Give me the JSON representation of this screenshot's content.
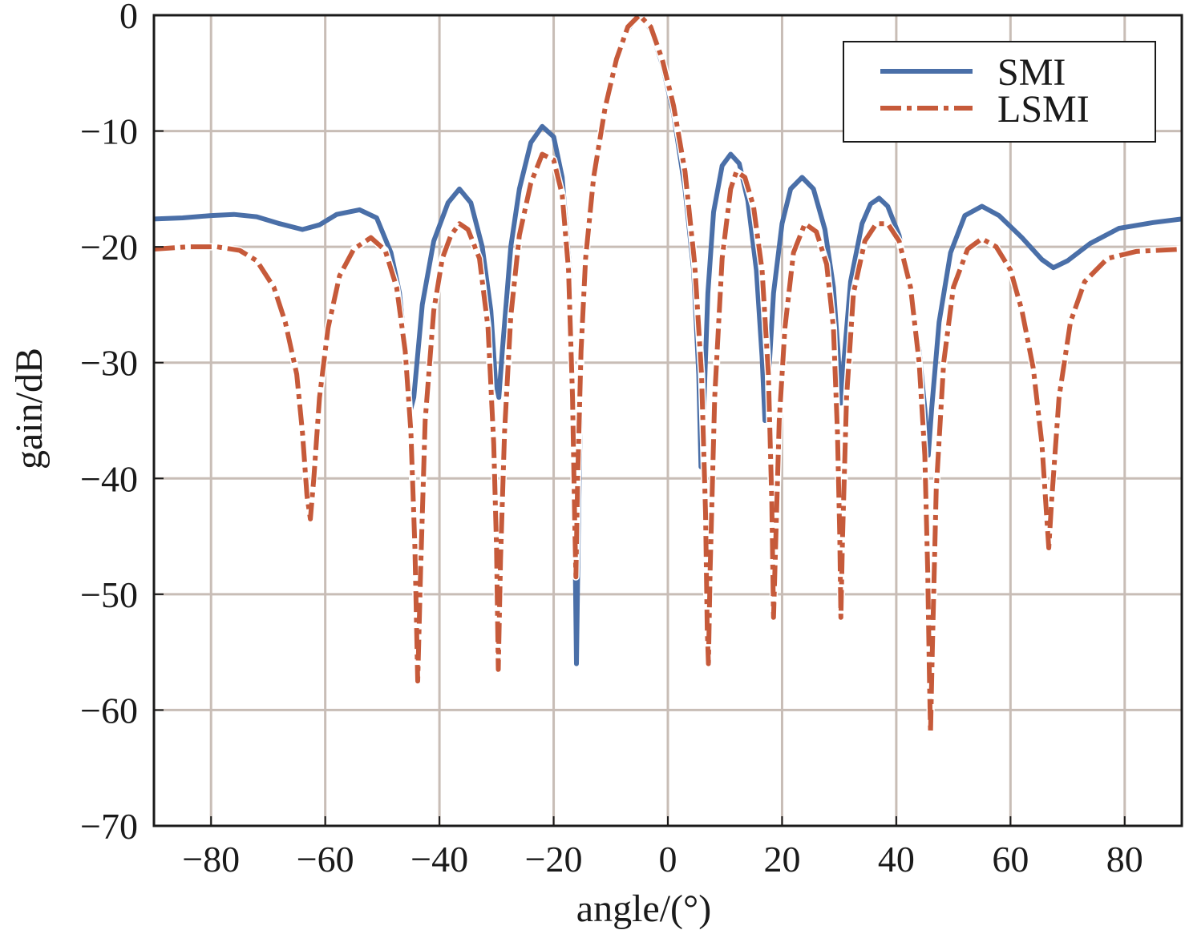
{
  "chart_data": {
    "type": "line",
    "title": "",
    "xlabel": "angle/(°)",
    "ylabel": "gain/dB",
    "xlim": [
      -90,
      90
    ],
    "ylim": [
      -70,
      0
    ],
    "x_ticks": [
      -80,
      -60,
      -40,
      -20,
      0,
      20,
      40,
      60,
      80
    ],
    "x_tick_labels": [
      "−80",
      "−60",
      "−40",
      "−20",
      "0",
      "20",
      "40",
      "60",
      "80"
    ],
    "y_ticks": [
      0,
      -10,
      -20,
      -30,
      -40,
      -50,
      -60,
      -70
    ],
    "y_tick_labels": [
      "0",
      "−10",
      "−20",
      "−30",
      "−40",
      "−50",
      "−60",
      "−70"
    ],
    "grid": true,
    "legend_position": "top-right",
    "series": [
      {
        "name": "SMI",
        "color": "#4a6fa8",
        "style": "solid",
        "points": [
          [
            -90,
            -17.6
          ],
          [
            -85,
            -17.5
          ],
          [
            -80,
            -17.3
          ],
          [
            -76,
            -17.2
          ],
          [
            -72,
            -17.4
          ],
          [
            -68,
            -18.0
          ],
          [
            -64,
            -18.5
          ],
          [
            -61,
            -18.1
          ],
          [
            -58,
            -17.2
          ],
          [
            -54,
            -16.8
          ],
          [
            -51,
            -17.5
          ],
          [
            -48.5,
            -20.5
          ],
          [
            -47,
            -24
          ],
          [
            -46,
            -29
          ],
          [
            -45.3,
            -34.5
          ],
          [
            -44.5,
            -33
          ],
          [
            -43,
            -25
          ],
          [
            -41,
            -19.5
          ],
          [
            -38.5,
            -16.2
          ],
          [
            -36.5,
            -15
          ],
          [
            -34.5,
            -16.2
          ],
          [
            -32.5,
            -20
          ],
          [
            -31,
            -25.5
          ],
          [
            -30.2,
            -31.5
          ],
          [
            -29.6,
            -33
          ],
          [
            -29,
            -29
          ],
          [
            -27.5,
            -20
          ],
          [
            -26,
            -15
          ],
          [
            -24,
            -11
          ],
          [
            -22,
            -9.6
          ],
          [
            -20,
            -10.5
          ],
          [
            -18.5,
            -14
          ],
          [
            -17.2,
            -22
          ],
          [
            -16.6,
            -34
          ],
          [
            -16.2,
            -48
          ],
          [
            -16.0,
            -56
          ],
          [
            -15.7,
            -45
          ],
          [
            -15.2,
            -31
          ],
          [
            -14.5,
            -22
          ],
          [
            -13,
            -14
          ],
          [
            -11,
            -8
          ],
          [
            -9,
            -4
          ],
          [
            -7,
            -1.2
          ],
          [
            -5,
            0
          ],
          [
            -3,
            -1.2
          ],
          [
            -1,
            -4.2
          ],
          [
            1,
            -8.5
          ],
          [
            3,
            -15
          ],
          [
            4.5,
            -22
          ],
          [
            5.4,
            -31
          ],
          [
            5.8,
            -39
          ],
          [
            6.2,
            -35
          ],
          [
            7,
            -24
          ],
          [
            8,
            -17
          ],
          [
            9.5,
            -13
          ],
          [
            11,
            -12
          ],
          [
            12.5,
            -12.8
          ],
          [
            14,
            -16
          ],
          [
            15.5,
            -22
          ],
          [
            16.5,
            -29.5
          ],
          [
            17,
            -35
          ],
          [
            17.6,
            -31.5
          ],
          [
            18.5,
            -24
          ],
          [
            20,
            -18
          ],
          [
            21.5,
            -15
          ],
          [
            23.5,
            -14
          ],
          [
            25.5,
            -15
          ],
          [
            27.5,
            -18.5
          ],
          [
            29,
            -23.5
          ],
          [
            29.8,
            -29
          ],
          [
            30.3,
            -33.5
          ],
          [
            30.8,
            -30
          ],
          [
            32,
            -23
          ],
          [
            34,
            -18
          ],
          [
            35.5,
            -16.3
          ],
          [
            37,
            -15.8
          ],
          [
            38.5,
            -16.5
          ],
          [
            40.5,
            -19
          ],
          [
            42.5,
            -24
          ],
          [
            44,
            -29
          ],
          [
            45,
            -34
          ],
          [
            45.6,
            -38
          ],
          [
            46.2,
            -34
          ],
          [
            47.5,
            -26.5
          ],
          [
            49.5,
            -20.5
          ],
          [
            52,
            -17.3
          ],
          [
            55,
            -16.5
          ],
          [
            58,
            -17.3
          ],
          [
            62,
            -19.2
          ],
          [
            65.5,
            -21.1
          ],
          [
            67.5,
            -21.8
          ],
          [
            70,
            -21.2
          ],
          [
            74,
            -19.7
          ],
          [
            79,
            -18.4
          ],
          [
            85,
            -17.9
          ],
          [
            90,
            -17.6
          ]
        ]
      },
      {
        "name": "LSMI",
        "color": "#c65a3a",
        "style": "dashed",
        "points": [
          [
            -90,
            -20.2
          ],
          [
            -84,
            -20.0
          ],
          [
            -79,
            -20.0
          ],
          [
            -75,
            -20.3
          ],
          [
            -72,
            -21.2
          ],
          [
            -69,
            -23.5
          ],
          [
            -67,
            -26.5
          ],
          [
            -65,
            -31
          ],
          [
            -64,
            -36
          ],
          [
            -63.2,
            -41.5
          ],
          [
            -62.6,
            -43.5
          ],
          [
            -62,
            -40
          ],
          [
            -61,
            -33
          ],
          [
            -59.5,
            -27
          ],
          [
            -57.5,
            -22.5
          ],
          [
            -55,
            -20.2
          ],
          [
            -52,
            -19.2
          ],
          [
            -49.5,
            -20.3
          ],
          [
            -47.5,
            -23.5
          ],
          [
            -46,
            -29
          ],
          [
            -45,
            -36
          ],
          [
            -44.3,
            -46
          ],
          [
            -43.8,
            -57.5
          ],
          [
            -43.3,
            -48
          ],
          [
            -42.5,
            -35
          ],
          [
            -41,
            -25.5
          ],
          [
            -39.5,
            -21
          ],
          [
            -38,
            -19
          ],
          [
            -36.5,
            -18
          ],
          [
            -35,
            -18.5
          ],
          [
            -33,
            -21
          ],
          [
            -31.5,
            -27
          ],
          [
            -30.5,
            -37
          ],
          [
            -30,
            -46
          ],
          [
            -29.7,
            -56.5
          ],
          [
            -29.3,
            -47
          ],
          [
            -28.6,
            -36
          ],
          [
            -27.5,
            -26
          ],
          [
            -26,
            -19
          ],
          [
            -24,
            -14.5
          ],
          [
            -22,
            -12
          ],
          [
            -20,
            -12.5
          ],
          [
            -18.5,
            -15.5
          ],
          [
            -17.4,
            -22
          ],
          [
            -16.7,
            -33
          ],
          [
            -16.3,
            -44
          ],
          [
            -16.1,
            -48.5
          ],
          [
            -15.8,
            -40
          ],
          [
            -15.2,
            -29
          ],
          [
            -14.4,
            -21
          ],
          [
            -13,
            -14
          ],
          [
            -11,
            -8
          ],
          [
            -9,
            -3.8
          ],
          [
            -7,
            -1.0
          ],
          [
            -5,
            0
          ],
          [
            -3,
            -1.0
          ],
          [
            -1,
            -3.8
          ],
          [
            1,
            -7.8
          ],
          [
            3,
            -13.5
          ],
          [
            4.7,
            -21.5
          ],
          [
            5.9,
            -31
          ],
          [
            6.6,
            -43
          ],
          [
            6.9,
            -53
          ],
          [
            7.1,
            -56
          ],
          [
            7.4,
            -48
          ],
          [
            8.2,
            -33
          ],
          [
            9.5,
            -21
          ],
          [
            11,
            -15
          ],
          [
            12,
            -13.5
          ],
          [
            13.5,
            -14
          ],
          [
            15,
            -16.5
          ],
          [
            16.5,
            -22
          ],
          [
            17.6,
            -31
          ],
          [
            18.2,
            -42
          ],
          [
            18.5,
            -52
          ],
          [
            18.8,
            -47
          ],
          [
            19.5,
            -35
          ],
          [
            20.5,
            -27
          ],
          [
            22,
            -20.5
          ],
          [
            24,
            -18
          ],
          [
            26,
            -18.7
          ],
          [
            27.8,
            -21.5
          ],
          [
            29,
            -27
          ],
          [
            29.7,
            -36
          ],
          [
            30.1,
            -45
          ],
          [
            30.3,
            -52
          ],
          [
            30.6,
            -45
          ],
          [
            31.3,
            -33
          ],
          [
            32.5,
            -24
          ],
          [
            34.5,
            -19.5
          ],
          [
            36.5,
            -18
          ],
          [
            38.5,
            -18
          ],
          [
            40.5,
            -19.5
          ],
          [
            42.5,
            -23.5
          ],
          [
            44,
            -30
          ],
          [
            45,
            -38
          ],
          [
            45.5,
            -48
          ],
          [
            45.8,
            -57
          ],
          [
            46,
            -62
          ],
          [
            46.3,
            -55
          ],
          [
            47,
            -41
          ],
          [
            48.3,
            -30
          ],
          [
            50,
            -23.5
          ],
          [
            52.5,
            -20.2
          ],
          [
            55,
            -19.3
          ],
          [
            57.5,
            -20
          ],
          [
            60,
            -22
          ],
          [
            62,
            -25.5
          ],
          [
            64,
            -30.5
          ],
          [
            65.5,
            -37
          ],
          [
            66.3,
            -43
          ],
          [
            66.7,
            -46
          ],
          [
            67.2,
            -42
          ],
          [
            68.5,
            -33
          ],
          [
            70.5,
            -26.5
          ],
          [
            73,
            -23
          ],
          [
            77,
            -21
          ],
          [
            82,
            -20.4
          ],
          [
            90,
            -20.2
          ]
        ]
      }
    ],
    "legend": [
      {
        "label": "SMI",
        "color": "#4a6fa8",
        "style": "solid"
      },
      {
        "label": "LSMI",
        "color": "#c65a3a",
        "style": "dashed"
      }
    ]
  }
}
